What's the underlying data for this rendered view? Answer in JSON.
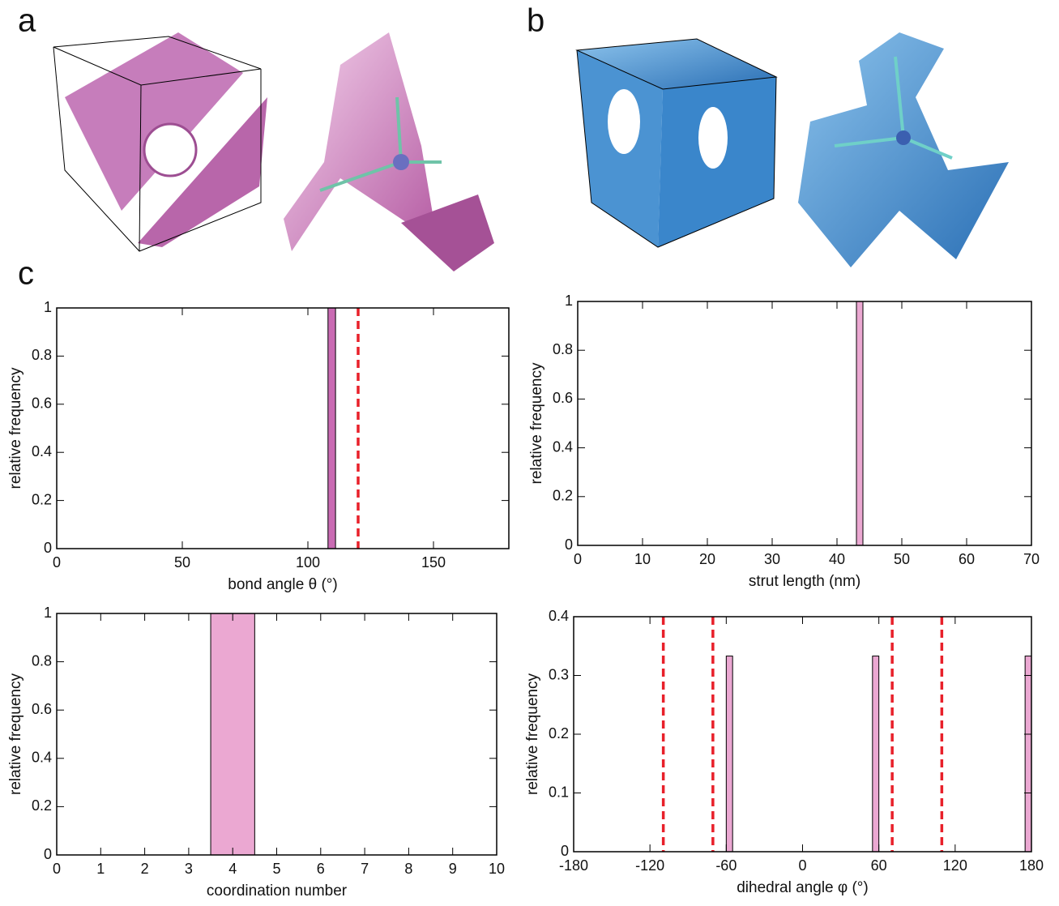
{
  "panel_labels": [
    "a",
    "b",
    "c"
  ],
  "chart_data": [
    {
      "type": "histogram",
      "xlabel": "bond angle θ (°)",
      "ylabel": "relative frequency",
      "bins": [
        108,
        111
      ],
      "values": [
        1
      ],
      "color": "#c96bb3",
      "xlim": [
        0,
        180
      ],
      "xticks": [
        0,
        50,
        100,
        150
      ],
      "ylim": [
        0,
        1
      ],
      "yticks": [
        0,
        0.2,
        0.4,
        0.6,
        0.8,
        1
      ],
      "vlines": [
        120
      ],
      "vline_color": "#e8202a"
    },
    {
      "type": "histogram",
      "xlabel": "strut length (nm)",
      "ylabel": "relative frequency",
      "bins": [
        43,
        44
      ],
      "values": [
        1
      ],
      "color": "#eba8d2",
      "xlim": [
        0,
        70
      ],
      "xticks": [
        0,
        10,
        20,
        30,
        40,
        50,
        60,
        70
      ],
      "ylim": [
        0,
        1
      ],
      "yticks": [
        0,
        0.2,
        0.4,
        0.6,
        0.8,
        1
      ]
    },
    {
      "type": "histogram",
      "xlabel": "coordination number",
      "ylabel": "relative frequency",
      "bins": [
        3.5,
        4.5
      ],
      "values": [
        1
      ],
      "color": "#eba8d2",
      "xlim": [
        0,
        10
      ],
      "xticks": [
        0,
        1,
        2,
        3,
        4,
        5,
        6,
        7,
        8,
        9,
        10
      ],
      "ylim": [
        0,
        1
      ],
      "yticks": [
        0,
        0.2,
        0.4,
        0.6,
        0.8,
        1
      ]
    },
    {
      "type": "histogram",
      "xlabel": "dihedral angle φ (°)",
      "ylabel": "relative frequency",
      "bins": [
        -60,
        -55,
        55,
        60,
        175,
        180
      ],
      "values": [
        0.333,
        0,
        0.333,
        0,
        0.333
      ],
      "color": "#eba8d2",
      "xlim": [
        -180,
        180
      ],
      "xticks": [
        -180,
        -120,
        -60,
        0,
        60,
        120,
        180
      ],
      "ylim": [
        0,
        0.4
      ],
      "yticks": [
        0,
        0.1,
        0.2,
        0.3,
        0.4
      ],
      "vlines": [
        -109.5,
        -70.5,
        70.5,
        109.5
      ],
      "vline_color": "#e8202a"
    }
  ]
}
